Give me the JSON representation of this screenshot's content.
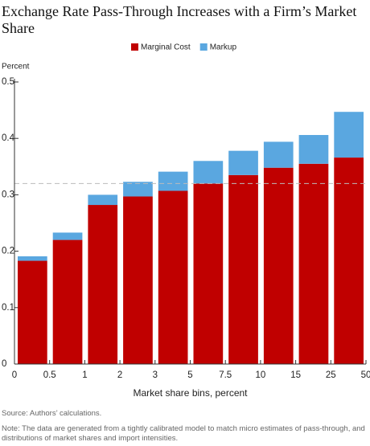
{
  "chart_data": {
    "type": "stacked_bar",
    "title": "Exchange Rate Pass-Through Increases with a Firm’s Market Share",
    "y_axis_label": "Percent",
    "x_axis_label": "Market share bins, percent",
    "categories": [
      null,
      null,
      null,
      null,
      null,
      null,
      null,
      null,
      null,
      null
    ],
    "bin_edges": [
      0,
      0.5,
      1,
      2,
      3,
      5,
      7.5,
      10,
      15,
      25,
      50
    ],
    "series": [
      {
        "name": "Marginal Cost",
        "color": "#c00000",
        "values": [
          0.183,
          0.22,
          0.282,
          0.297,
          0.307,
          0.32,
          0.335,
          0.348,
          0.355,
          0.366
        ]
      },
      {
        "name": "Markup",
        "color": "#5aa7e0",
        "values": [
          0.008,
          0.013,
          0.018,
          0.026,
          0.034,
          0.04,
          0.043,
          0.046,
          0.051,
          0.081
        ]
      }
    ],
    "reference_line": 0.32,
    "ylim": [
      0,
      0.5
    ],
    "yticks": [
      0,
      0.1,
      0.2,
      0.3,
      0.4,
      0.5
    ],
    "source": "Source: Authors’ calculations.",
    "note": "Note: The data are generated from a tightly calibrated model to match micro estimates of pass-through, and distributions of market shares and import intensities."
  }
}
